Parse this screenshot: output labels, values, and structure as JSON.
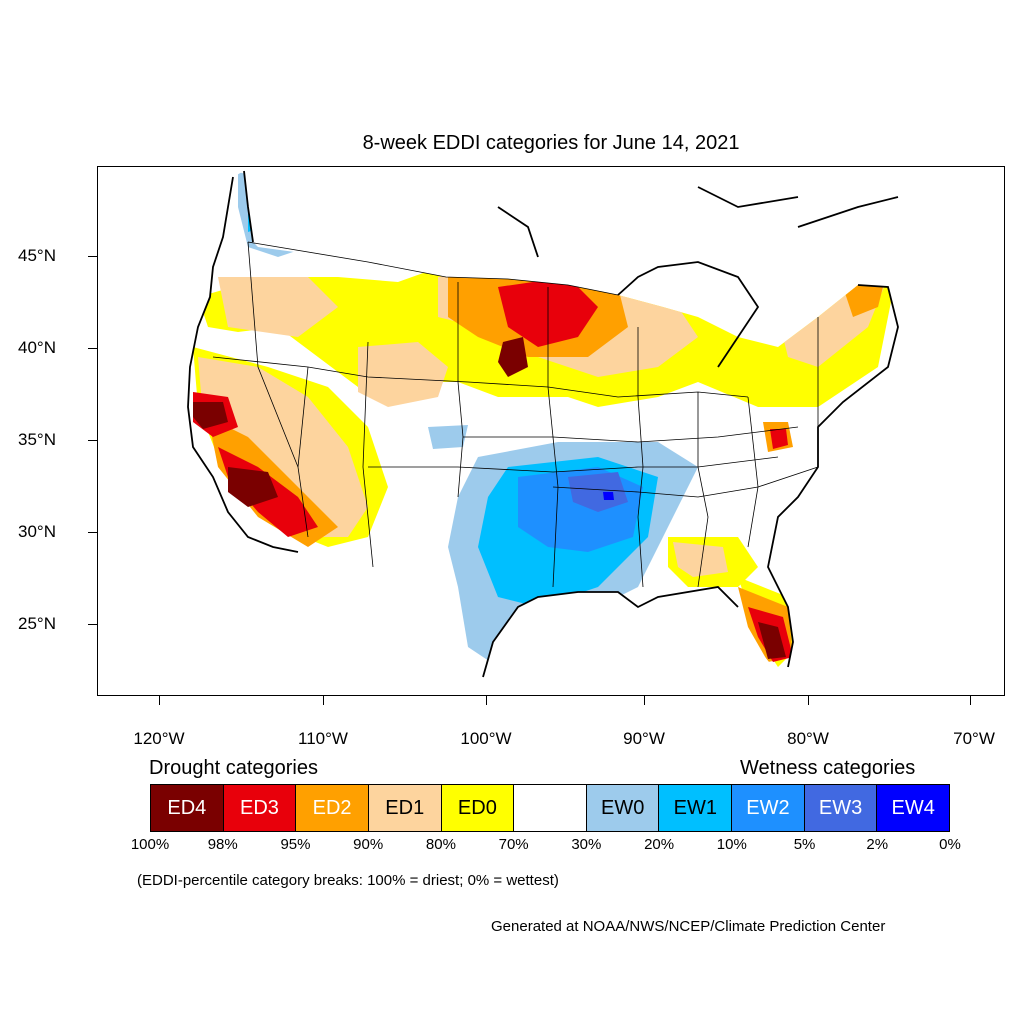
{
  "title": "8-week EDDI categories for June 14, 2021",
  "axes": {
    "latitude_labels": [
      "45°N",
      "40°N",
      "35°N",
      "30°N",
      "25°N"
    ],
    "longitude_labels": [
      "120°W",
      "110°W",
      "100°W",
      "90°W",
      "80°W",
      "70°W"
    ]
  },
  "legend": {
    "drought_heading": "Drought categories",
    "wetness_heading": "Wetness categories",
    "categories": [
      {
        "label": "ED4",
        "color": "#7a0000",
        "text_color": "#ffffff"
      },
      {
        "label": "ED3",
        "color": "#e8000b",
        "text_color": "#ffffff"
      },
      {
        "label": "ED2",
        "color": "#ffa000",
        "text_color": "#ffffff"
      },
      {
        "label": "ED1",
        "color": "#fdd49e",
        "text_color": "#000000"
      },
      {
        "label": "ED0",
        "color": "#ffff00",
        "text_color": "#000000"
      },
      {
        "label": "",
        "color": "#ffffff",
        "text_color": "#000000"
      },
      {
        "label": "EW0",
        "color": "#9dcbec",
        "text_color": "#000000"
      },
      {
        "label": "EW1",
        "color": "#00bfff",
        "text_color": "#000000"
      },
      {
        "label": "EW2",
        "color": "#1e90ff",
        "text_color": "#ffffff"
      },
      {
        "label": "EW3",
        "color": "#4169e1",
        "text_color": "#ffffff"
      },
      {
        "label": "EW4",
        "color": "#0000ff",
        "text_color": "#ffffff"
      }
    ],
    "percentiles": [
      "100%",
      "98%",
      "95%",
      "90%",
      "80%",
      "70%",
      "30%",
      "20%",
      "10%",
      "5%",
      "2%",
      "0%"
    ]
  },
  "breaks_note": "(EDDI-percentile category breaks: 100% = driest; 0% = wettest)",
  "credit": "Generated at NOAA/NWS/NCEP/Climate Prediction Center"
}
